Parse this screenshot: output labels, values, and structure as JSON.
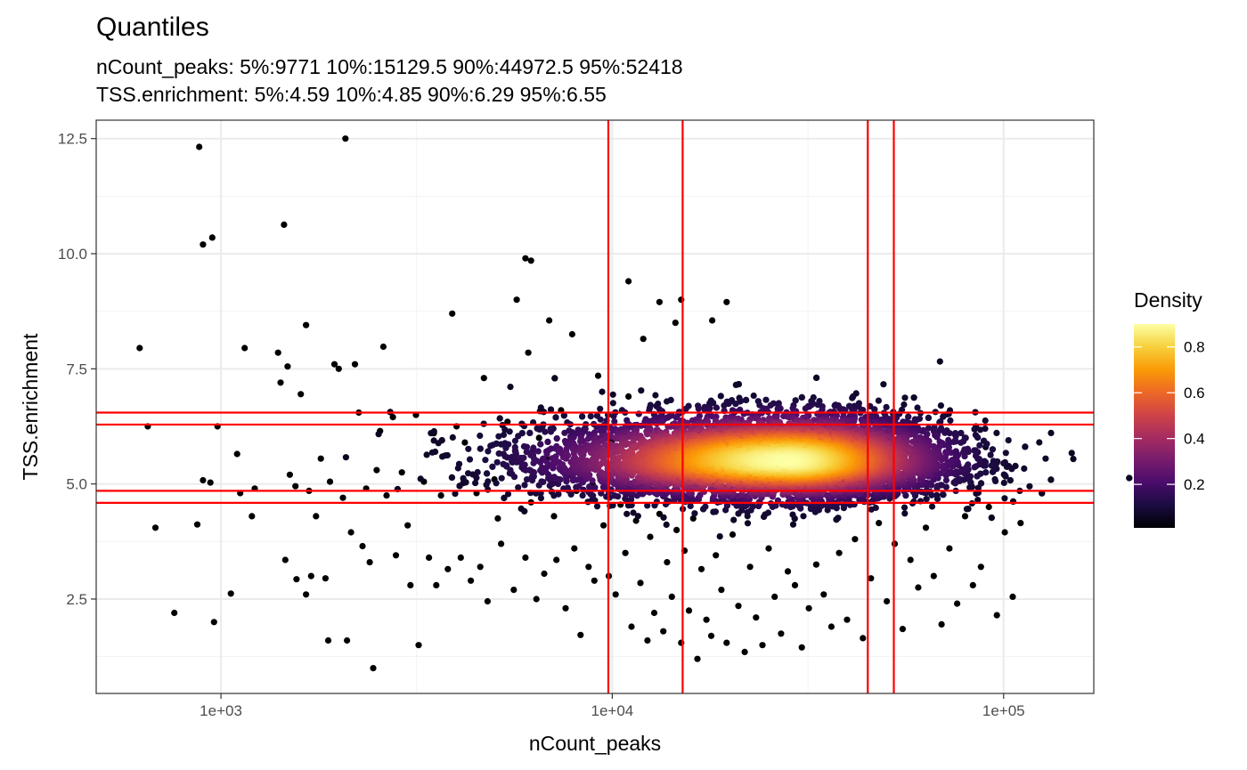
{
  "chart_data": {
    "type": "scatter",
    "title": "Quantiles",
    "subtitle_lines": [
      "nCount_peaks: 5%:9771 10%:15129.5 90%:44972.5 95%:52418",
      "TSS.enrichment: 5%:4.59 10%:4.85 90%:6.29 95%:6.55"
    ],
    "xlabel": "nCount_peaks",
    "ylabel": "TSS.enrichment",
    "x_scale": "log10",
    "xlim": [
      480,
      170000
    ],
    "ylim": [
      0.45,
      12.9
    ],
    "x_ticks": [
      {
        "value": 1000,
        "label": "1e+03"
      },
      {
        "value": 10000,
        "label": "1e+04"
      },
      {
        "value": 100000,
        "label": "1e+05"
      }
    ],
    "y_ticks": [
      {
        "value": 2.5,
        "label": "2.5"
      },
      {
        "value": 5.0,
        "label": "5.0"
      },
      {
        "value": 7.5,
        "label": "7.5"
      },
      {
        "value": 10.0,
        "label": "10.0"
      },
      {
        "value": 12.5,
        "label": "12.5"
      }
    ],
    "vlines": [
      9771,
      15129.5,
      44972.5,
      52418
    ],
    "hlines": [
      4.59,
      4.85,
      6.29,
      6.55
    ],
    "line_color": "#ff0000",
    "grid": true,
    "color_by": "Density",
    "legend": {
      "title": "Density",
      "position": "right",
      "range": [
        0.01,
        0.9
      ],
      "ticks": [
        {
          "value": 0.2,
          "label": "0.2"
        },
        {
          "value": 0.4,
          "label": "0.4"
        },
        {
          "value": 0.6,
          "label": "0.6"
        },
        {
          "value": 0.8,
          "label": "0.8"
        }
      ],
      "colormap": [
        "#000004",
        "#1b0c41",
        "#4a0c6b",
        "#781c6d",
        "#a52c60",
        "#cf4446",
        "#ed6925",
        "#fb9b06",
        "#f7d13d",
        "#fcffa4"
      ]
    },
    "main_cloud": {
      "center_x": 28000,
      "center_y": 5.5,
      "log_x_sd": 0.24,
      "y_sd": 0.48,
      "n_points": 9000
    },
    "points": [
      [
        620,
        7.95
      ],
      [
        650,
        6.25
      ],
      [
        680,
        4.05
      ],
      [
        760,
        2.2
      ],
      [
        870,
        4.12
      ],
      [
        880,
        12.32
      ],
      [
        900,
        10.2
      ],
      [
        900,
        5.08
      ],
      [
        940,
        5.03
      ],
      [
        950,
        10.35
      ],
      [
        960,
        2.0
      ],
      [
        980,
        6.25
      ],
      [
        1060,
        2.62
      ],
      [
        1100,
        5.65
      ],
      [
        1120,
        4.8
      ],
      [
        1150,
        7.95
      ],
      [
        1200,
        4.3
      ],
      [
        1220,
        4.9
      ],
      [
        1400,
        7.85
      ],
      [
        1420,
        7.2
      ],
      [
        1450,
        10.63
      ],
      [
        1480,
        7.55
      ],
      [
        1460,
        3.35
      ],
      [
        1500,
        5.2
      ],
      [
        1550,
        4.95
      ],
      [
        1560,
        2.93
      ],
      [
        1600,
        6.95
      ],
      [
        1650,
        2.6
      ],
      [
        1650,
        8.45
      ],
      [
        1680,
        4.85
      ],
      [
        1700,
        3.0
      ],
      [
        1750,
        4.3
      ],
      [
        1800,
        5.55
      ],
      [
        1850,
        2.95
      ],
      [
        1900,
        5.05
      ],
      [
        1880,
        1.6
      ],
      [
        1950,
        7.6
      ],
      [
        2000,
        7.5
      ],
      [
        2050,
        4.7
      ],
      [
        2080,
        12.5
      ],
      [
        2100,
        1.6
      ],
      [
        2150,
        3.95
      ],
      [
        2200,
        7.6
      ],
      [
        2250,
        6.55
      ],
      [
        2300,
        3.65
      ],
      [
        2350,
        4.9
      ],
      [
        2400,
        3.3
      ],
      [
        2450,
        1.0
      ],
      [
        2500,
        5.3
      ],
      [
        2550,
        6.15
      ],
      [
        2600,
        7.98
      ],
      [
        2650,
        4.75
      ],
      [
        2750,
        6.45
      ],
      [
        2800,
        3.45
      ],
      [
        2900,
        5.25
      ],
      [
        3000,
        4.1
      ],
      [
        3050,
        2.8
      ],
      [
        3150,
        6.5
      ],
      [
        3200,
        1.5
      ],
      [
        3300,
        5.05
      ],
      [
        3400,
        3.4
      ],
      [
        3500,
        6.1
      ],
      [
        3550,
        2.8
      ],
      [
        3650,
        4.75
      ],
      [
        3800,
        3.15
      ],
      [
        3900,
        8.7
      ],
      [
        4000,
        6.25
      ],
      [
        4100,
        3.4
      ],
      [
        4200,
        5.9
      ],
      [
        4350,
        2.9
      ],
      [
        4500,
        4.8
      ],
      [
        4600,
        3.2
      ],
      [
        4700,
        7.3
      ],
      [
        4800,
        2.45
      ],
      [
        5000,
        5.1
      ],
      [
        5100,
        4.25
      ],
      [
        5200,
        3.7
      ],
      [
        5400,
        6.35
      ],
      [
        5600,
        2.7
      ],
      [
        5700,
        9.0
      ],
      [
        5800,
        5.5
      ],
      [
        6000,
        3.4
      ],
      [
        6100,
        7.85
      ],
      [
        6200,
        4.6
      ],
      [
        6400,
        2.5
      ],
      [
        6500,
        6.0
      ],
      [
        6700,
        3.05
      ],
      [
        6800,
        5.55
      ],
      [
        6900,
        8.55
      ],
      [
        7100,
        4.3
      ],
      [
        7200,
        3.35
      ],
      [
        7400,
        6.6
      ],
      [
        7600,
        2.3
      ],
      [
        7700,
        5.2
      ],
      [
        7900,
        8.25
      ],
      [
        8000,
        3.6
      ],
      [
        8100,
        4.85
      ],
      [
        8300,
        1.72
      ],
      [
        8500,
        6.2
      ],
      [
        8700,
        3.2
      ],
      [
        8900,
        5.0
      ],
      [
        9000,
        2.9
      ],
      [
        9200,
        7.35
      ],
      [
        9500,
        4.1
      ],
      [
        9800,
        3.0
      ],
      [
        10000,
        5.95
      ],
      [
        10200,
        2.6
      ],
      [
        10500,
        4.55
      ],
      [
        10800,
        3.5
      ],
      [
        11000,
        6.9
      ],
      [
        11200,
        1.9
      ],
      [
        11500,
        4.2
      ],
      [
        11800,
        2.85
      ],
      [
        12000,
        5.2
      ],
      [
        12300,
        1.6
      ],
      [
        12500,
        3.85
      ],
      [
        12800,
        2.2
      ],
      [
        13200,
        4.35
      ],
      [
        13500,
        1.8
      ],
      [
        13800,
        3.3
      ],
      [
        14200,
        2.55
      ],
      [
        14600,
        4.0
      ],
      [
        15000,
        1.55
      ],
      [
        15300,
        3.55
      ],
      [
        15700,
        2.25
      ],
      [
        16100,
        4.25
      ],
      [
        16500,
        1.2
      ],
      [
        16900,
        3.15
      ],
      [
        17400,
        2.05
      ],
      [
        17900,
        1.7
      ],
      [
        18400,
        3.45
      ],
      [
        19000,
        2.7
      ],
      [
        19600,
        1.55
      ],
      [
        20300,
        3.9
      ],
      [
        21000,
        2.35
      ],
      [
        21800,
        1.35
      ],
      [
        22500,
        3.2
      ],
      [
        23300,
        2.1
      ],
      [
        24200,
        1.5
      ],
      [
        25100,
        3.6
      ],
      [
        26000,
        2.55
      ],
      [
        27000,
        1.75
      ],
      [
        28100,
        3.1
      ],
      [
        29300,
        2.8
      ],
      [
        30500,
        1.45
      ],
      [
        31800,
        2.3
      ],
      [
        33200,
        3.25
      ],
      [
        34700,
        2.6
      ],
      [
        36300,
        1.9
      ],
      [
        38000,
        3.5
      ],
      [
        39800,
        2.05
      ],
      [
        41700,
        3.8
      ],
      [
        43700,
        1.65
      ],
      [
        45800,
        2.95
      ],
      [
        48000,
        4.15
      ],
      [
        50300,
        2.45
      ],
      [
        52700,
        3.7
      ],
      [
        55200,
        1.85
      ],
      [
        57800,
        3.35
      ],
      [
        60500,
        2.75
      ],
      [
        63300,
        4.05
      ],
      [
        66300,
        3.0
      ],
      [
        69400,
        1.95
      ],
      [
        72700,
        3.6
      ],
      [
        76100,
        2.4
      ],
      [
        79700,
        4.3
      ],
      [
        83500,
        2.8
      ],
      [
        87500,
        3.2
      ],
      [
        91700,
        4.5
      ],
      [
        96100,
        2.15
      ],
      [
        100700,
        3.95
      ],
      [
        105500,
        2.55
      ],
      [
        110500,
        4.15
      ]
    ],
    "points_top": [
      [
        6000,
        9.9
      ],
      [
        6200,
        9.85
      ],
      [
        11000,
        9.4
      ],
      [
        13200,
        8.95
      ],
      [
        15000,
        9.0
      ],
      [
        19600,
        8.95
      ],
      [
        14500,
        8.5
      ],
      [
        18000,
        8.55
      ],
      [
        12000,
        8.15
      ]
    ],
    "points_right": [
      [
        85000,
        6.25
      ],
      [
        100000,
        5.45
      ],
      [
        110000,
        4.85
      ],
      [
        128000,
        5.55
      ],
      [
        95000,
        5.1
      ],
      [
        90000,
        5.8
      ],
      [
        80000,
        6.0
      ]
    ]
  }
}
